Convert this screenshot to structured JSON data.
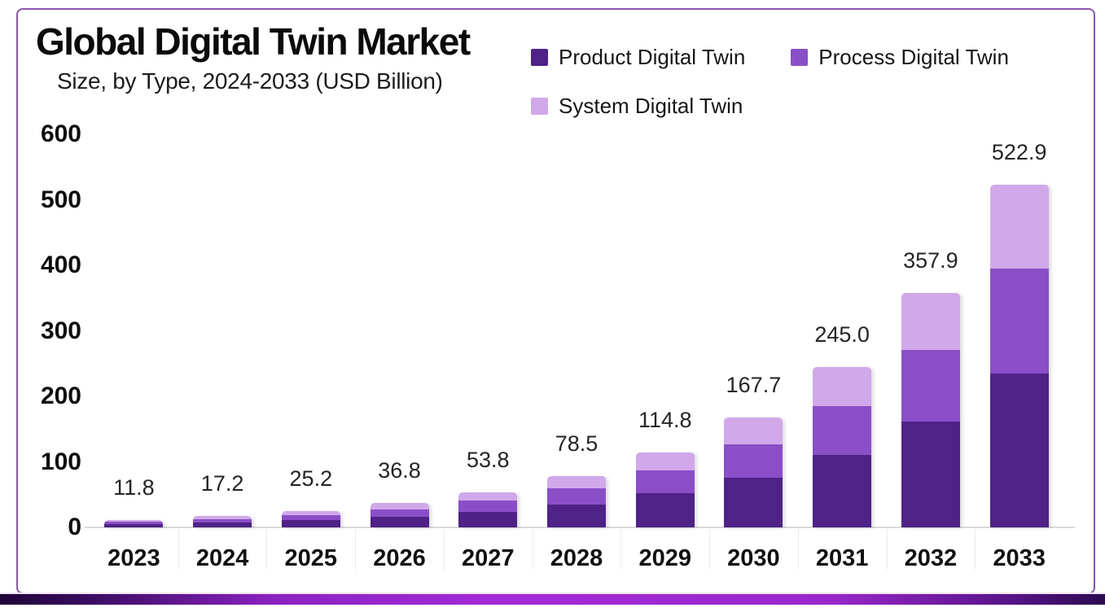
{
  "page": {
    "title": "Global Digital Twin Market",
    "subtitle": "Size, by Type, 2024-2033 (USD Billion)"
  },
  "colors": {
    "product": "#4f2287",
    "process": "#8a4fc7",
    "system": "#d1a8ea",
    "frame_border": "#8a56a8",
    "axis_line": "#dadada",
    "bottom_gradient_stops": [
      "#1f0538",
      "#3a0c61",
      "#8c22c2",
      "#a32ad8",
      "#9a27cc",
      "#551385",
      "#2c0a50"
    ]
  },
  "chart_data": {
    "type": "bar",
    "stacked": true,
    "title": "Global Digital Twin Market",
    "subtitle": "Size, by Type, 2024-2033 (USD Billion)",
    "xlabel": "",
    "ylabel": "",
    "ylim": [
      0,
      600
    ],
    "yticks": [
      0,
      100,
      200,
      300,
      400,
      500,
      600
    ],
    "grid": false,
    "legend_position": "top-right",
    "categories": [
      "2023",
      "2024",
      "2025",
      "2026",
      "2027",
      "2028",
      "2029",
      "2030",
      "2031",
      "2032",
      "2033"
    ],
    "total_labels": [
      "11.8",
      "17.2",
      "25.2",
      "36.8",
      "53.8",
      "78.5",
      "114.8",
      "167.7",
      "245.0",
      "357.9",
      "522.9"
    ],
    "totals": [
      11.8,
      17.2,
      25.2,
      36.8,
      53.8,
      78.5,
      114.8,
      167.7,
      245.0,
      357.9,
      522.9
    ],
    "segments_estimated": true,
    "series": [
      {
        "name": "Product Digital Twin",
        "color": "#4f2287",
        "values": [
          5.3,
          7.7,
          11.3,
          16.6,
          24.2,
          35.3,
          51.7,
          75.5,
          110.3,
          161.1,
          235.3
        ]
      },
      {
        "name": "Process Digital Twin",
        "color": "#8a4fc7",
        "values": [
          3.6,
          5.2,
          7.7,
          11.2,
          16.4,
          23.9,
          35.0,
          51.1,
          74.7,
          109.2,
          159.5
        ]
      },
      {
        "name": "System Digital Twin",
        "color": "#d1a8ea",
        "values": [
          2.9,
          4.3,
          6.2,
          9.0,
          13.2,
          19.3,
          28.1,
          41.1,
          60.0,
          87.6,
          128.1
        ]
      }
    ]
  }
}
